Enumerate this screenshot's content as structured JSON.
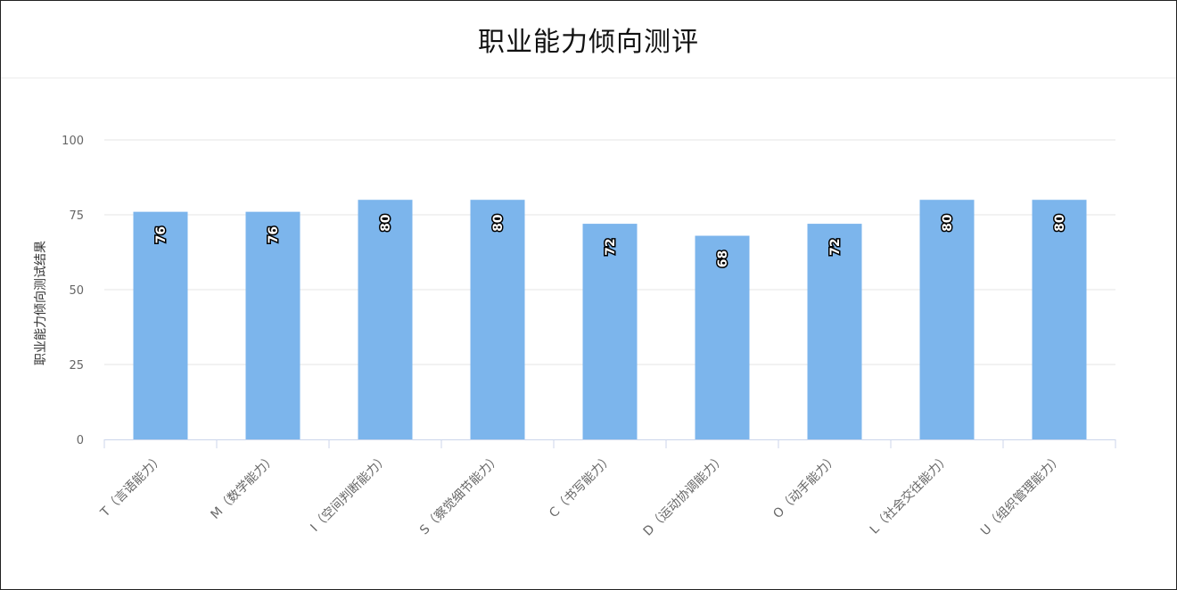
{
  "page": {
    "title": "职业能力倾向测评"
  },
  "colors": {
    "bar": "#7cb5ec",
    "grid": "#e6e6e6",
    "axis": "#ccd6eb",
    "tick_text": "#666666"
  },
  "chart_data": {
    "type": "bar",
    "title": "职业能力倾向测评",
    "xlabel": "",
    "ylabel": "职业能力倾向测试结果",
    "ylim": [
      0,
      100
    ],
    "yticks": [
      0,
      25,
      50,
      75,
      100
    ],
    "grid": true,
    "categories": [
      "T（言语能力）",
      "M（数学能力）",
      "I（空间判断能力）",
      "S（察觉细节能力）",
      "C（书写能力）",
      "D（运动协调能力）",
      "O（动手能力）",
      "L（社会交往能力）",
      "U（组织管理能力）"
    ],
    "values": [
      76,
      76,
      80,
      80,
      72,
      68,
      72,
      80,
      80
    ],
    "data_labels": true
  }
}
